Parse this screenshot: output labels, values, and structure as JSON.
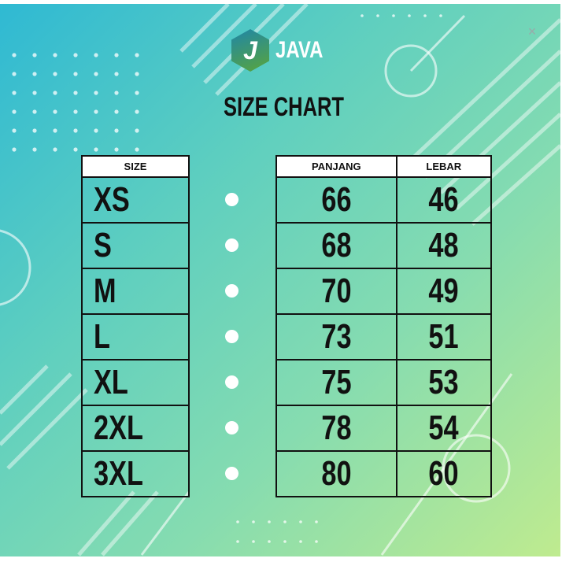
{
  "brand": {
    "logo_letter": "J",
    "name": "JAVA"
  },
  "title": "SIZE CHART",
  "headers": {
    "size": "SIZE",
    "panjang": "PANJANG",
    "lebar": "LEBAR"
  },
  "rows": [
    {
      "size": "XS",
      "panjang": "66",
      "lebar": "46"
    },
    {
      "size": "S",
      "panjang": "68",
      "lebar": "48"
    },
    {
      "size": "M",
      "panjang": "70",
      "lebar": "49"
    },
    {
      "size": "L",
      "panjang": "73",
      "lebar": "51"
    },
    {
      "size": "XL",
      "panjang": "75",
      "lebar": "53"
    },
    {
      "size": "2XL",
      "panjang": "78",
      "lebar": "54"
    },
    {
      "size": "3XL",
      "panjang": "80",
      "lebar": "60"
    }
  ],
  "close_glyph": "×"
}
